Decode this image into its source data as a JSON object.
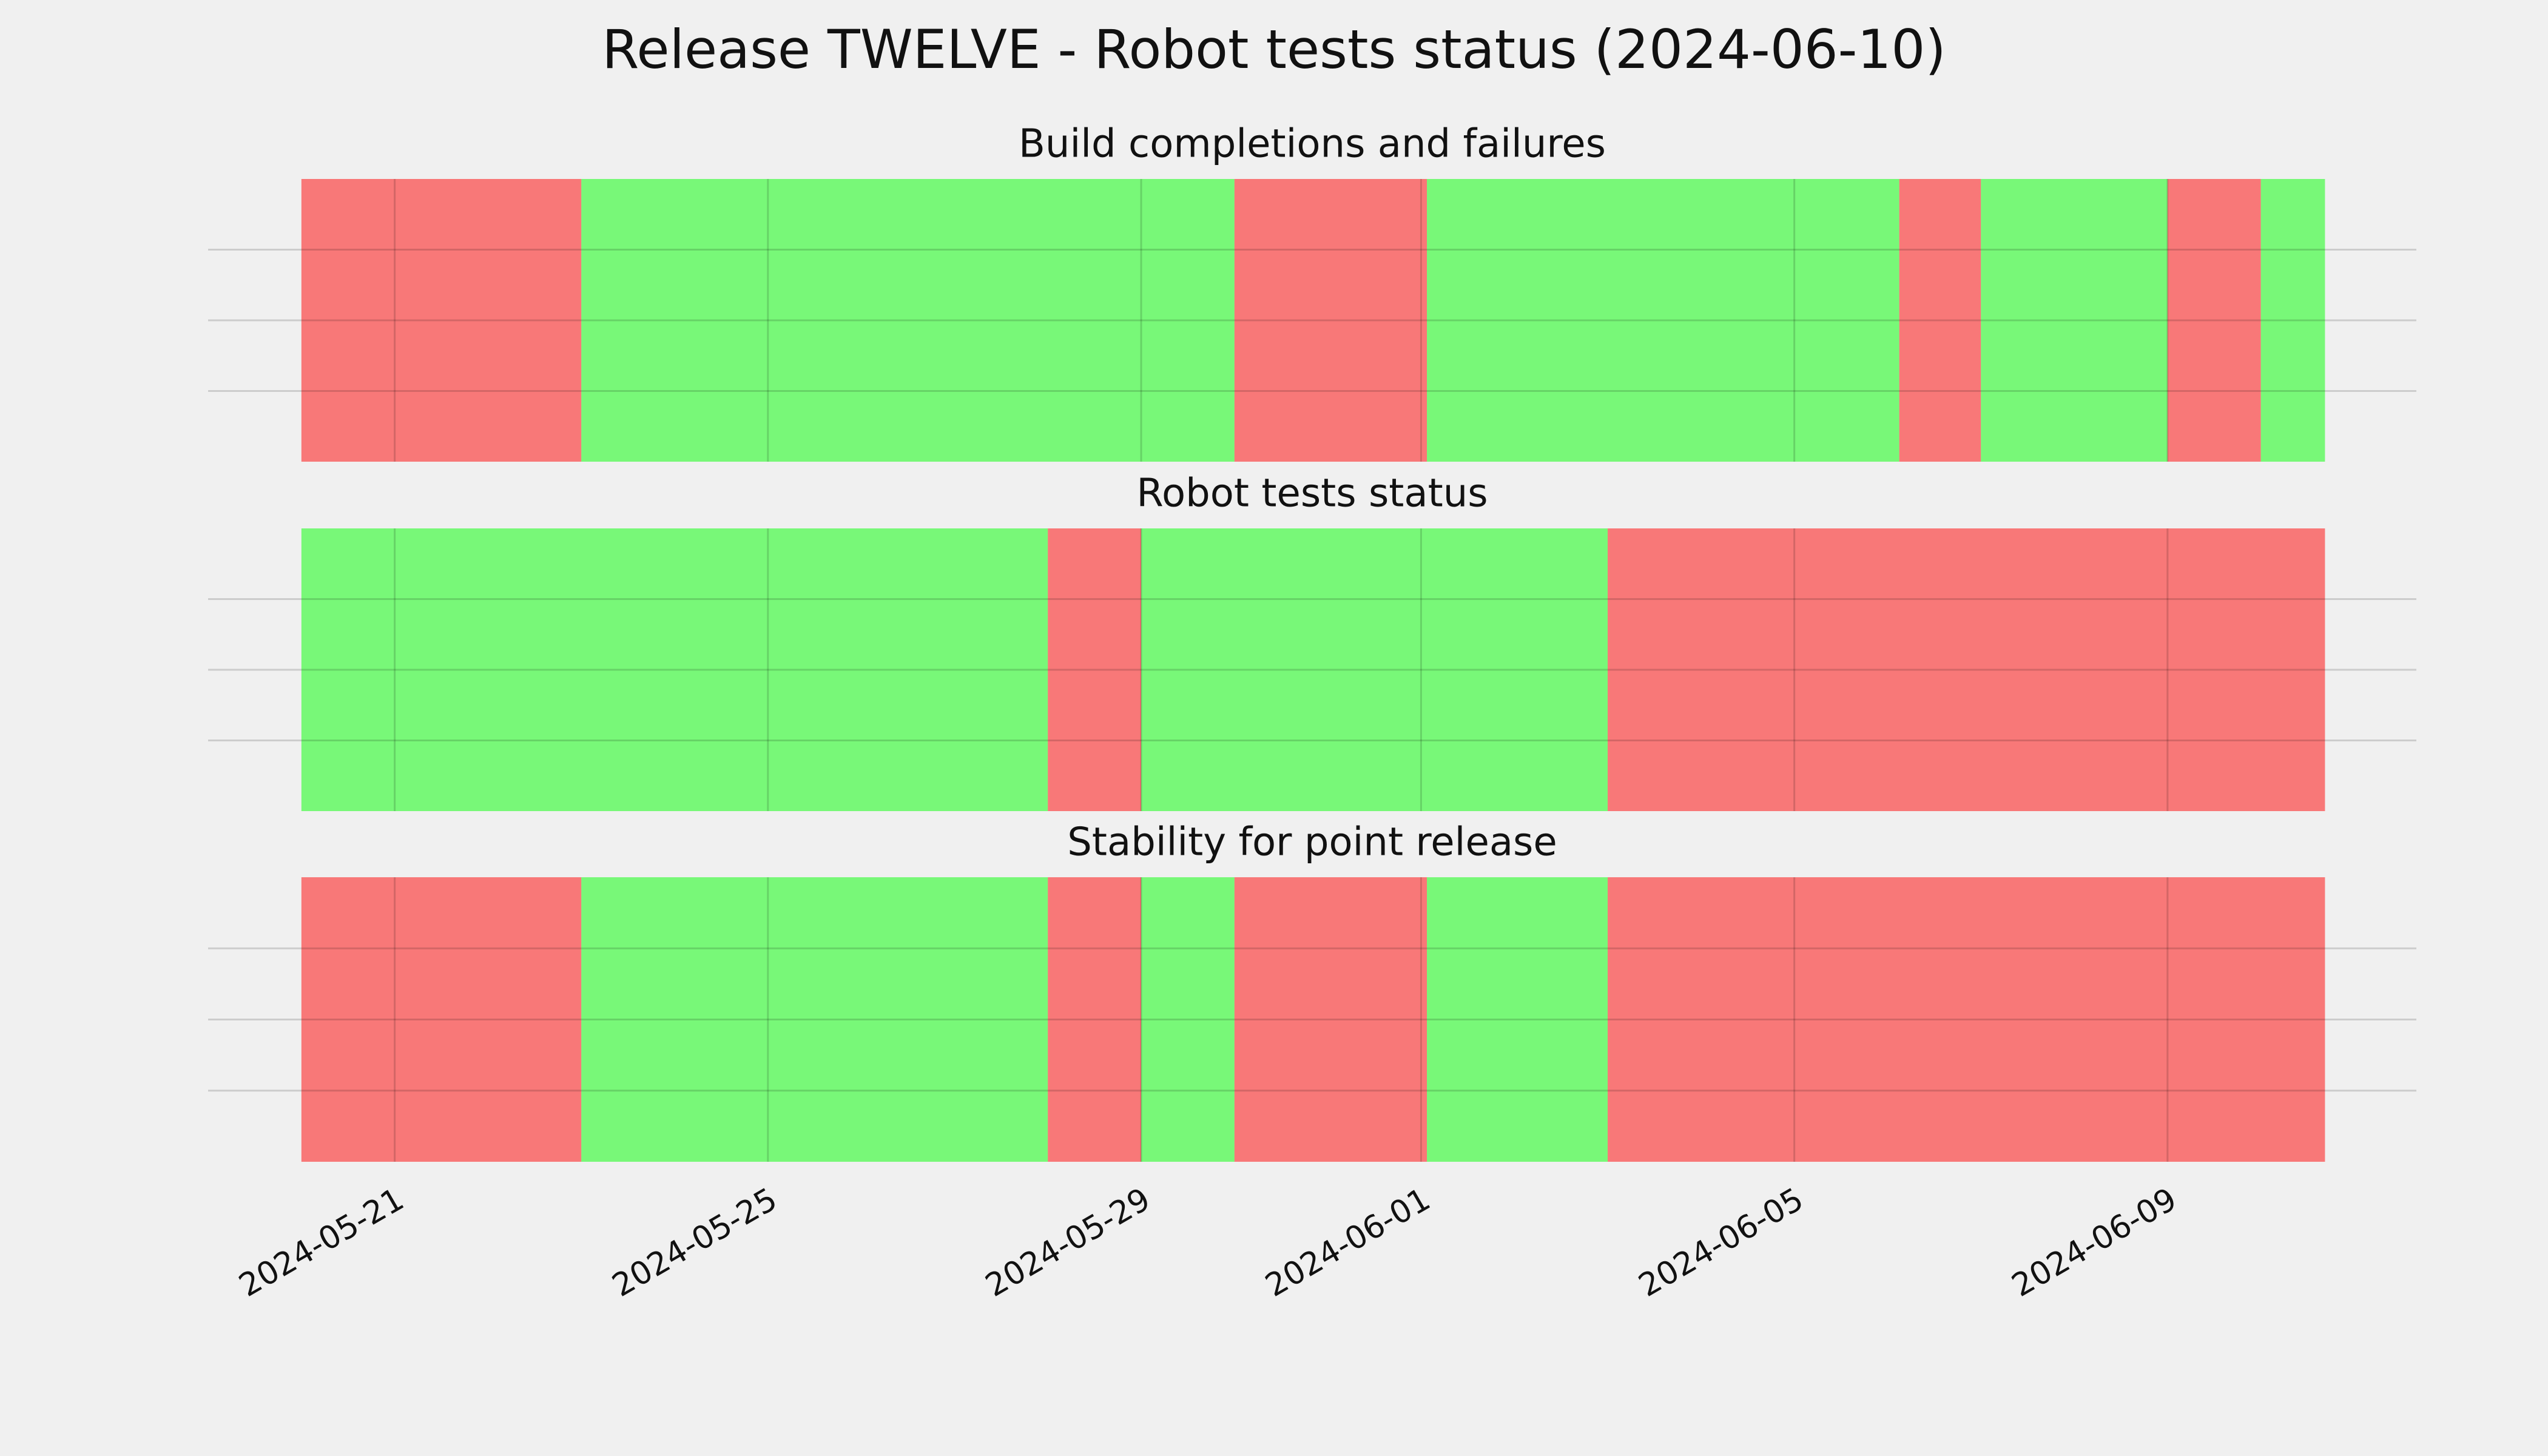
{
  "title": "Release TWELVE - Robot tests status (2024-06-10)",
  "chart_data": [
    {
      "type": "timeline",
      "title": "Build completions and failures",
      "x": [
        "2024-05-20T00:00",
        "2024-05-23T00:00",
        "2024-05-30T00:00",
        "2024-06-01T01:30",
        "2024-06-06T03:00",
        "2024-06-07T00:00",
        "2024-06-09T00:00",
        "2024-06-10T00:00",
        "2024-06-10T16:30"
      ],
      "colors": [
        "red",
        "lime",
        "red",
        "lime",
        "red",
        "lime",
        "red",
        "lime"
      ],
      "alpha": 0.5,
      "ylim": [
        0,
        1
      ],
      "yticks": [
        0.25,
        0.5,
        0.75
      ],
      "grid": true
    },
    {
      "type": "timeline",
      "title": "Robot tests status",
      "x": [
        "2024-05-20T00:00",
        "2024-05-28T00:00",
        "2024-05-29T00:00",
        "2024-06-03T00:00",
        "2024-06-10T16:30"
      ],
      "colors": [
        "lime",
        "red",
        "lime",
        "red"
      ],
      "alpha": 0.5,
      "ylim": [
        0,
        1
      ],
      "yticks": [
        0.25,
        0.5,
        0.75
      ],
      "grid": true
    },
    {
      "type": "timeline",
      "title": "Stability for point release",
      "x": [
        "2024-05-20T00:00",
        "2024-05-23T00:00",
        "2024-05-28T00:00",
        "2024-05-29T00:00",
        "2024-05-30T00:00",
        "2024-06-01T01:30",
        "2024-06-03T00:00",
        "2024-06-10T16:30"
      ],
      "colors": [
        "red",
        "lime",
        "red",
        "lime",
        "red",
        "lime",
        "red"
      ],
      "alpha": 0.5,
      "ylim": [
        0,
        1
      ],
      "yticks": [
        0.25,
        0.5,
        0.75
      ],
      "grid": true,
      "xlim": [
        "2024-05-19T00:00",
        "2024-06-11T16:00"
      ],
      "xticks": [
        "2024-05-21",
        "2024-05-25",
        "2024-05-29",
        "2024-06-01",
        "2024-06-05",
        "2024-06-09"
      ]
    }
  ]
}
